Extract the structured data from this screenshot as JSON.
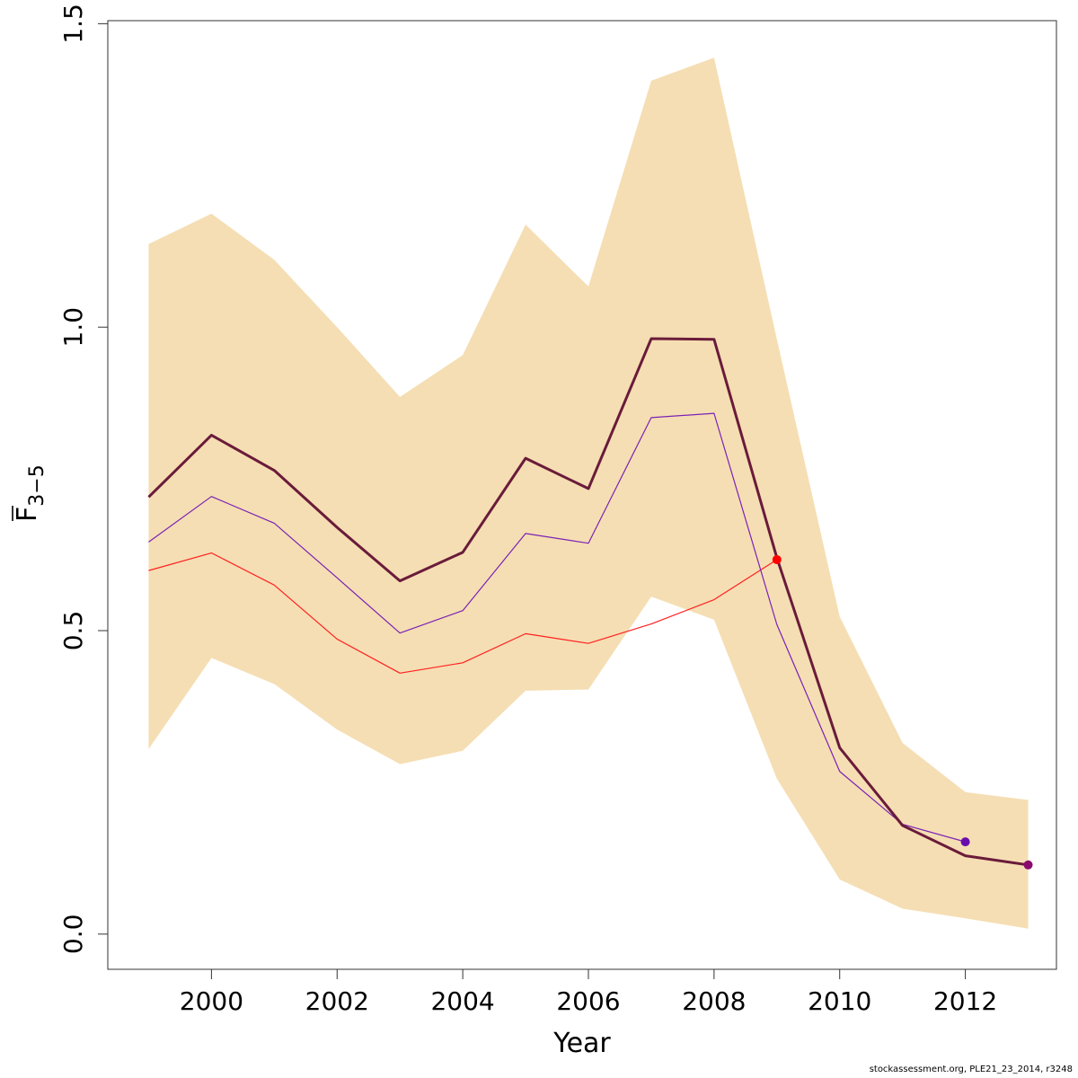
{
  "chart_data": {
    "type": "line",
    "xlabel": "Year",
    "ylabel": {
      "base": "F",
      "subscript": "3−5"
    },
    "xlim": [
      1998.35,
      2013.45
    ],
    "ylim": [
      -0.058,
      1.505
    ],
    "x_ticks": [
      2000,
      2002,
      2004,
      2006,
      2008,
      2010,
      2012
    ],
    "y_ticks": [
      0.0,
      0.5,
      1.0,
      1.5
    ],
    "y_tick_labels": [
      "0.0",
      "0.5",
      "1.0",
      "1.5"
    ],
    "grid": false,
    "band": {
      "color": "#F5DEB3",
      "x": [
        1999,
        2000,
        2001,
        2002,
        2003,
        2004,
        2005,
        2006,
        2007,
        2008,
        2009,
        2010,
        2011,
        2012,
        2013
      ],
      "upper": [
        1.137,
        1.187,
        1.111,
        1.0,
        0.885,
        0.954,
        1.169,
        1.067,
        1.406,
        1.444,
        0.98,
        0.523,
        0.315,
        0.234,
        0.221
      ],
      "lower": [
        0.305,
        0.455,
        0.412,
        0.337,
        0.28,
        0.302,
        0.401,
        0.403,
        0.556,
        0.518,
        0.256,
        0.09,
        0.042,
        0.026,
        0.009
      ]
    },
    "series": [
      {
        "color": "#6A1B3A",
        "width": 3,
        "x": [
          1999,
          2000,
          2001,
          2002,
          2003,
          2004,
          2005,
          2006,
          2007,
          2008,
          2009,
          2010,
          2011,
          2012,
          2013
        ],
        "values": [
          0.72,
          0.822,
          0.764,
          0.67,
          0.582,
          0.629,
          0.784,
          0.734,
          0.981,
          0.98,
          0.62,
          0.307,
          0.179,
          0.129,
          0.114
        ],
        "end_point": true,
        "end_color": "#8B0A6E"
      },
      {
        "color": "#7B22B5",
        "width": 1.2,
        "x": [
          1999,
          2000,
          2001,
          2002,
          2003,
          2004,
          2005,
          2006,
          2007,
          2008,
          2009,
          2010,
          2011,
          2012
        ],
        "values": [
          0.646,
          0.721,
          0.677,
          0.587,
          0.496,
          0.533,
          0.66,
          0.644,
          0.851,
          0.858,
          0.51,
          0.268,
          0.181,
          0.152
        ],
        "end_point": true,
        "end_color": "#6A0DAD"
      },
      {
        "color": "#FF2020",
        "width": 1.2,
        "x": [
          1999,
          2000,
          2001,
          2002,
          2003,
          2004,
          2005,
          2006,
          2007,
          2008,
          2009
        ],
        "values": [
          0.599,
          0.628,
          0.575,
          0.486,
          0.43,
          0.447,
          0.495,
          0.479,
          0.511,
          0.551,
          0.617
        ],
        "end_point": true,
        "end_color": "#FF0000"
      }
    ]
  },
  "footer": {
    "note": "stockassessment.org, PLE21_23_2014, r3248"
  }
}
